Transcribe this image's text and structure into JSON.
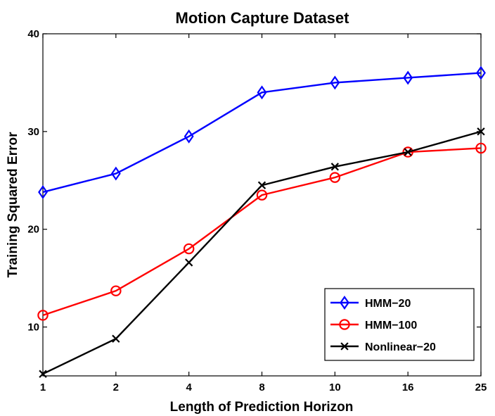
{
  "chart_data": {
    "type": "line",
    "title": "Motion Capture Dataset",
    "xlabel": "Length of Prediction Horizon",
    "ylabel": "Training Squared Error",
    "categories": [
      "1",
      "2",
      "4",
      "8",
      "10",
      "16",
      "25"
    ],
    "ylim": [
      5,
      40
    ],
    "yticks": [
      10,
      20,
      30,
      40
    ],
    "grid": false,
    "legend_position": "bottom-right",
    "series": [
      {
        "name": "HMM−20",
        "color": "#0000ff",
        "marker": "diamond",
        "values": [
          23.8,
          25.7,
          29.5,
          34.0,
          35.0,
          35.5,
          36.0
        ]
      },
      {
        "name": "HMM−100",
        "color": "#ff0000",
        "marker": "circle",
        "values": [
          11.2,
          13.7,
          18.0,
          23.5,
          25.3,
          27.9,
          28.3
        ]
      },
      {
        "name": "Nonlinear−20",
        "color": "#000000",
        "marker": "x",
        "values": [
          5.2,
          8.8,
          16.6,
          24.5,
          26.4,
          27.9,
          30.0
        ]
      }
    ]
  }
}
